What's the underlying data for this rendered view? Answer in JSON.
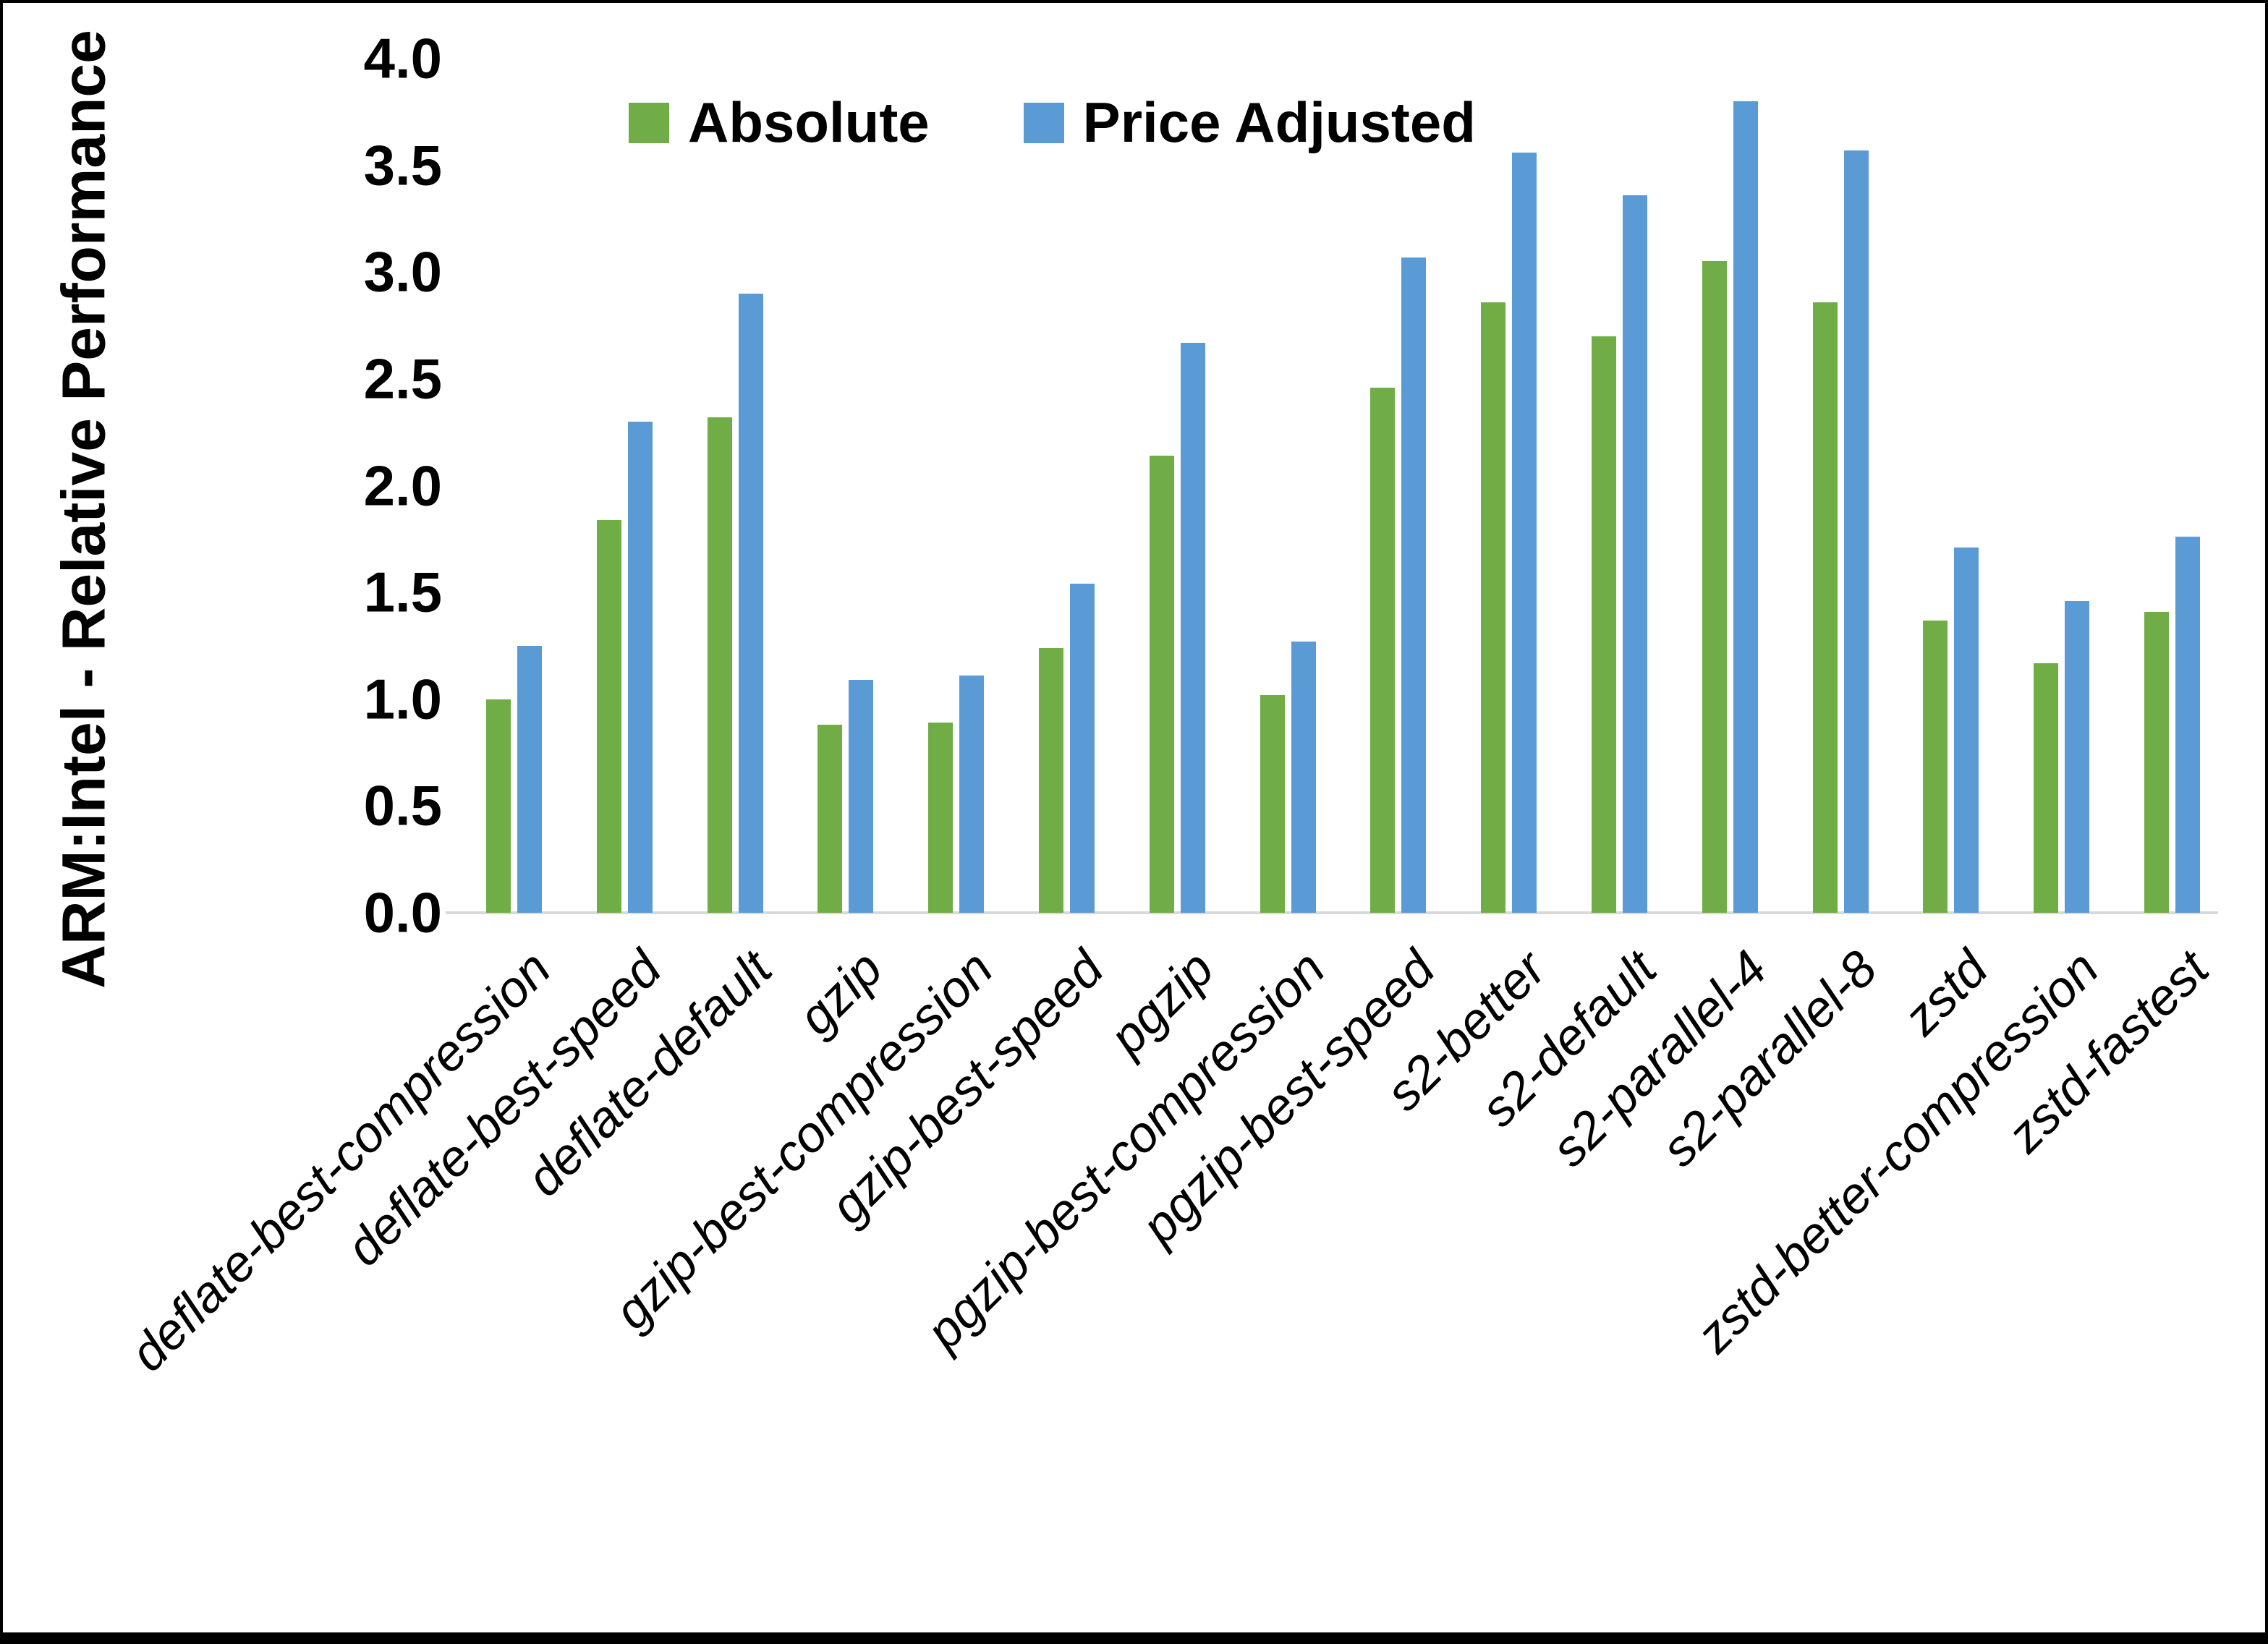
{
  "chart_data": {
    "type": "bar",
    "title": "",
    "xlabel": "",
    "ylabel": "ARM:Intel - Relative Performance",
    "ylim": [
      0.0,
      4.0
    ],
    "ytick_step": 0.5,
    "yticks": [
      "0.0",
      "0.5",
      "1.0",
      "1.5",
      "2.0",
      "2.5",
      "3.0",
      "3.5",
      "4.0"
    ],
    "grid": false,
    "legend_position": "top-center",
    "axis_line_color": "#d9d9d9",
    "categories": [
      "deflate-best-compression",
      "deflate-best-speed",
      "deflate-default",
      "gzip",
      "gzip-best-compression",
      "gzip-best-speed",
      "pgzip",
      "pgzip-best-compression",
      "pgzip-best-speed",
      "s2-better",
      "s2-default",
      "s2-parallel-4",
      "s2-parallel-8",
      "zstd",
      "zstd-better-compression",
      "zstd-fastest"
    ],
    "series": [
      {
        "name": "Absolute",
        "color": "#70AD47",
        "values": [
          1.0,
          1.84,
          2.32,
          0.88,
          0.89,
          1.24,
          2.14,
          1.02,
          2.46,
          2.86,
          2.7,
          3.05,
          2.86,
          1.37,
          1.17,
          1.41
        ]
      },
      {
        "name": "Price Adjusted",
        "color": "#5B9BD5",
        "values": [
          1.25,
          2.3,
          2.9,
          1.09,
          1.11,
          1.54,
          2.67,
          1.27,
          3.07,
          3.56,
          3.36,
          3.8,
          3.57,
          1.71,
          1.46,
          1.76
        ]
      }
    ]
  }
}
